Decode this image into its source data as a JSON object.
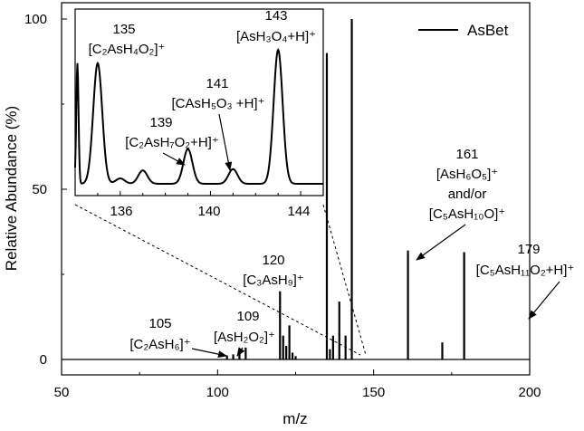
{
  "chart_data": {
    "type": "line",
    "xlabel": "m/z",
    "ylabel": "Relative Abundance (%)",
    "xlim": [
      50,
      200
    ],
    "ylim": [
      0,
      100
    ],
    "xticks": [
      "50",
      "100",
      "150",
      "200"
    ],
    "yticks": [
      "0",
      "50",
      "100"
    ],
    "legend": {
      "label": "AsBet",
      "position": "top-right"
    },
    "series": [
      {
        "name": "AsBet",
        "peaks": [
          {
            "mz": 103,
            "y": 1.2
          },
          {
            "mz": 105,
            "y": 1.5
          },
          {
            "mz": 107,
            "y": 1.8
          },
          {
            "mz": 109,
            "y": 3.5
          },
          {
            "mz": 120,
            "y": 20
          },
          {
            "mz": 121,
            "y": 7
          },
          {
            "mz": 122,
            "y": 4
          },
          {
            "mz": 123,
            "y": 10
          },
          {
            "mz": 124,
            "y": 2
          },
          {
            "mz": 125,
            "y": 1
          },
          {
            "mz": 135,
            "y": 90
          },
          {
            "mz": 136,
            "y": 3
          },
          {
            "mz": 137,
            "y": 7
          },
          {
            "mz": 139,
            "y": 17
          },
          {
            "mz": 141,
            "y": 7
          },
          {
            "mz": 143,
            "y": 100
          },
          {
            "mz": 161,
            "y": 32
          },
          {
            "mz": 172,
            "y": 5
          },
          {
            "mz": 179,
            "y": 31.5
          }
        ]
      }
    ],
    "inset": {
      "xlim": [
        134,
        145
      ],
      "ylim": [
        0,
        100
      ],
      "xticks": [
        "136",
        "140",
        "144"
      ],
      "profile_peaks": [
        {
          "mz": 134.1,
          "y": 90
        },
        {
          "mz": 135,
          "y": 90
        },
        {
          "mz": 136,
          "y": 4
        },
        {
          "mz": 137,
          "y": 10
        },
        {
          "mz": 139,
          "y": 26
        },
        {
          "mz": 141,
          "y": 11
        },
        {
          "mz": 143,
          "y": 100
        }
      ],
      "annotations": [
        {
          "mz": "135",
          "formula": "[C₂AsH₄O₂]⁺"
        },
        {
          "mz": "143",
          "formula": "[AsH₃O₄+H]⁺"
        },
        {
          "mz": "141",
          "formula": "[CAsH₅O₃ +H]⁺"
        },
        {
          "mz": "139",
          "formula": "[C₂AsH₇O₂+H]⁺"
        }
      ]
    },
    "annotations": [
      {
        "mz": "161",
        "line1": "[AsH₆O₅]⁺",
        "line2": "and/or",
        "line3": "[C₅AsH₁₀O]⁺"
      },
      {
        "mz": "179",
        "line1": "[C₅AsH₁₁O₂+H]⁺"
      },
      {
        "mz": "120",
        "line1": "[C₃AsH₉]⁺"
      },
      {
        "mz": "105",
        "line1": "[C₂AsH₆]⁺"
      },
      {
        "mz": "109",
        "line1": "[AsH₂O₂]⁺"
      }
    ]
  }
}
